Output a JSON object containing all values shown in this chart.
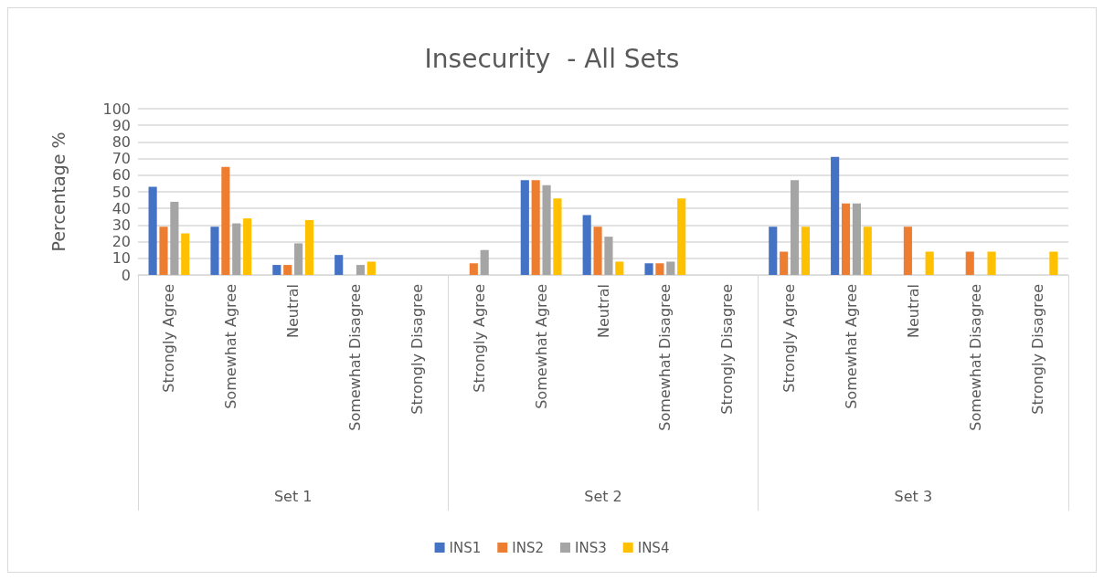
{
  "chart_data": {
    "type": "bar",
    "title": "Insecurity  - All Sets",
    "ylabel": "Percentage %",
    "categories": [
      "Strongly Agree",
      "Somewhat Agree",
      "Neutral",
      "Somewhat Disagree",
      "Strongly Disagree",
      "Strongly Agree",
      "Somewhat Agree",
      "Neutral",
      "Somewhat Disagree",
      "Strongly Disagree",
      "Strongly Agree",
      "Somewhat Agree",
      "Neutral",
      "Somewhat Disagree",
      "Strongly Disagree"
    ],
    "annotations": [
      "Set 1",
      "Set 2",
      "Set 3"
    ],
    "series": [
      {
        "name": "INS1",
        "color": "#4472c4",
        "values": [
          53,
          29,
          6,
          12,
          0,
          0,
          57,
          36,
          7,
          0,
          29,
          71,
          0,
          0,
          0
        ]
      },
      {
        "name": "INS2",
        "color": "#ed7d31",
        "values": [
          29,
          65,
          6,
          0,
          0,
          7,
          57,
          29,
          7,
          0,
          14,
          43,
          29,
          14,
          0
        ]
      },
      {
        "name": "INS3",
        "color": "#a5a5a5",
        "values": [
          44,
          31,
          19,
          6,
          0,
          15,
          54,
          23,
          8,
          0,
          57,
          43,
          0,
          0,
          0
        ]
      },
      {
        "name": "INS4",
        "color": "#ffc000",
        "values": [
          25,
          34,
          33,
          8,
          0,
          0,
          46,
          8,
          46,
          0,
          29,
          29,
          14,
          14,
          14
        ]
      }
    ],
    "ylim": [
      0,
      100
    ],
    "yticks": [
      0,
      10,
      20,
      30,
      40,
      50,
      60,
      70,
      80,
      90,
      100
    ],
    "grid": "y",
    "legend": "bottom"
  }
}
